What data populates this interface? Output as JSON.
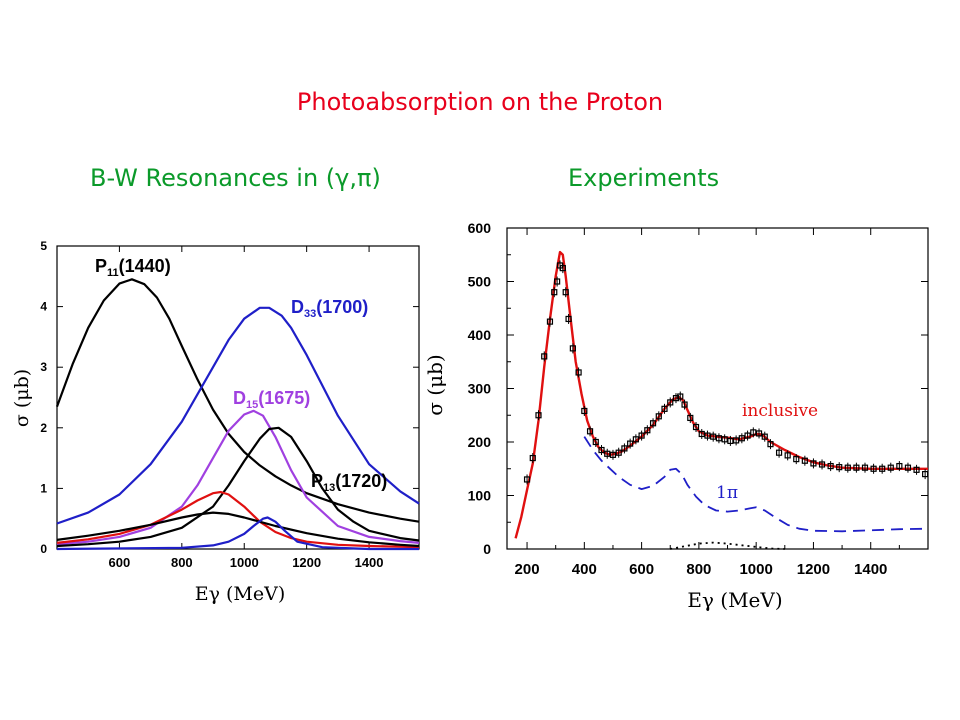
{
  "page": {
    "title": "Photoabsorption on the Proton",
    "subtitle_left": "B-W Resonances in (γ,π)",
    "subtitle_right": "Experiments"
  },
  "chart_data": [
    {
      "type": "line",
      "xlabel": "Eγ (MeV)",
      "ylabel": "σ (μb)",
      "xlim": [
        400,
        1560
      ],
      "ylim": [
        0,
        5
      ],
      "x_ticks": [
        600,
        800,
        1000,
        1200,
        1400
      ],
      "y_ticks": [
        0,
        1,
        2,
        3,
        4,
        5
      ],
      "series": [
        {
          "name": "P11 (1440)",
          "label_main": "P",
          "label_sub": "11",
          "label_tail": "(1440)",
          "color": "#000000",
          "x": [
            400,
            450,
            500,
            550,
            600,
            640,
            680,
            720,
            760,
            800,
            850,
            900,
            950,
            1000,
            1050,
            1100,
            1150,
            1200,
            1300,
            1400,
            1500,
            1560
          ],
          "y": [
            2.35,
            3.05,
            3.65,
            4.1,
            4.38,
            4.45,
            4.37,
            4.15,
            3.8,
            3.35,
            2.8,
            2.3,
            1.9,
            1.6,
            1.38,
            1.2,
            1.05,
            0.92,
            0.74,
            0.6,
            0.5,
            0.45
          ]
        },
        {
          "name": "D33(1700)",
          "label_main": "D",
          "label_sub": "33",
          "label_tail": "(1700)",
          "color": "#1f1fc8",
          "x": [
            400,
            500,
            600,
            700,
            800,
            900,
            950,
            1000,
            1050,
            1080,
            1120,
            1150,
            1200,
            1300,
            1400,
            1500,
            1560
          ],
          "y": [
            0.42,
            0.6,
            0.9,
            1.4,
            2.1,
            3.0,
            3.45,
            3.8,
            3.98,
            3.98,
            3.85,
            3.65,
            3.2,
            2.2,
            1.4,
            0.95,
            0.75
          ]
        },
        {
          "name": "D15 (1675)",
          "label_main": "D",
          "label_sub": "15",
          "label_tail": "(1675)",
          "color": "#a040e0",
          "x": [
            400,
            500,
            600,
            700,
            800,
            850,
            900,
            950,
            1000,
            1030,
            1060,
            1100,
            1150,
            1200,
            1300,
            1400,
            1500,
            1560
          ],
          "y": [
            0.08,
            0.12,
            0.2,
            0.35,
            0.7,
            1.05,
            1.5,
            1.95,
            2.22,
            2.28,
            2.2,
            1.85,
            1.3,
            0.85,
            0.38,
            0.2,
            0.13,
            0.1
          ]
        },
        {
          "name": "P13 (1720)",
          "label_main": "P",
          "label_sub": "13",
          "label_tail": "(1720)",
          "color": "#000000",
          "x": [
            400,
            500,
            600,
            700,
            800,
            900,
            950,
            1000,
            1050,
            1080,
            1110,
            1150,
            1200,
            1250,
            1300,
            1350,
            1400,
            1500,
            1560
          ],
          "y": [
            0.05,
            0.08,
            0.12,
            0.2,
            0.35,
            0.7,
            1.05,
            1.45,
            1.82,
            1.98,
            2.0,
            1.85,
            1.45,
            1.0,
            0.65,
            0.45,
            0.3,
            0.18,
            0.14
          ]
        },
        {
          "name": "red",
          "label_main": "",
          "label_sub": "",
          "label_tail": "",
          "color": "#e01010",
          "x": [
            400,
            500,
            600,
            700,
            800,
            850,
            900,
            925,
            950,
            1000,
            1050,
            1100,
            1150,
            1200,
            1300,
            1400,
            1560
          ],
          "y": [
            0.1,
            0.16,
            0.25,
            0.4,
            0.65,
            0.8,
            0.92,
            0.94,
            0.9,
            0.7,
            0.45,
            0.28,
            0.18,
            0.12,
            0.07,
            0.05,
            0.03
          ]
        },
        {
          "name": "black-broad",
          "label_main": "",
          "label_sub": "",
          "label_tail": "",
          "color": "#000000",
          "x": [
            400,
            500,
            600,
            700,
            800,
            850,
            900,
            950,
            1000,
            1100,
            1200,
            1300,
            1400,
            1500,
            1560
          ],
          "y": [
            0.15,
            0.22,
            0.3,
            0.4,
            0.52,
            0.57,
            0.6,
            0.58,
            0.52,
            0.38,
            0.26,
            0.17,
            0.11,
            0.07,
            0.05
          ]
        },
        {
          "name": "blue-narrow",
          "label_main": "",
          "label_sub": "",
          "label_tail": "",
          "color": "#1f1fc8",
          "x": [
            400,
            800,
            900,
            950,
            1000,
            1030,
            1060,
            1075,
            1100,
            1130,
            1170,
            1250,
            1400,
            1560
          ],
          "y": [
            0.0,
            0.02,
            0.06,
            0.12,
            0.25,
            0.38,
            0.5,
            0.52,
            0.45,
            0.3,
            0.12,
            0.03,
            0.0,
            0.0
          ]
        }
      ]
    },
    {
      "type": "line+scatter",
      "xlabel": "Eγ (MeV)",
      "ylabel": "σ (μb)",
      "xlim": [
        130,
        1600
      ],
      "ylim": [
        0,
        600
      ],
      "x_ticks": [
        200,
        400,
        600,
        800,
        1000,
        1200,
        1400
      ],
      "y_ticks": [
        0,
        100,
        200,
        300,
        400,
        500,
        600
      ],
      "annotations": {
        "inclusive": "inclusive",
        "one_pi": "1π"
      },
      "series": [
        {
          "name": "inclusive",
          "color": "#e01010",
          "style": "solid",
          "x": [
            160,
            180,
            200,
            220,
            240,
            260,
            280,
            300,
            315,
            325,
            335,
            350,
            370,
            390,
            410,
            430,
            450,
            470,
            490,
            510,
            530,
            560,
            600,
            640,
            680,
            710,
            730,
            745,
            760,
            780,
            800,
            830,
            860,
            900,
            940,
            980,
            1000,
            1020,
            1050,
            1100,
            1150,
            1200,
            1250,
            1300,
            1400,
            1500,
            1600
          ],
          "y": [
            20,
            60,
            110,
            160,
            240,
            340,
            430,
            510,
            555,
            550,
            510,
            440,
            350,
            290,
            240,
            210,
            190,
            180,
            176,
            178,
            182,
            193,
            210,
            232,
            262,
            280,
            284,
            278,
            260,
            236,
            220,
            212,
            210,
            208,
            205,
            210,
            215,
            214,
            200,
            185,
            172,
            162,
            156,
            152,
            150,
            150,
            150
          ]
        },
        {
          "name": "1π",
          "color": "#1f1fc8",
          "style": "dashed",
          "x": [
            400,
            430,
            460,
            490,
            520,
            560,
            600,
            640,
            680,
            700,
            720,
            740,
            760,
            790,
            820,
            860,
            900,
            940,
            980,
            1000,
            1030,
            1070,
            1110,
            1150,
            1200,
            1300,
            1400,
            1500,
            1600
          ],
          "y": [
            210,
            185,
            165,
            150,
            135,
            120,
            112,
            118,
            135,
            148,
            150,
            140,
            120,
            98,
            82,
            72,
            70,
            72,
            76,
            78,
            72,
            58,
            45,
            38,
            34,
            33,
            35,
            37,
            38
          ]
        },
        {
          "name": "small",
          "color": "#000000",
          "style": "dotted",
          "x": [
            700,
            750,
            800,
            850,
            900,
            950,
            1000,
            1050,
            1100
          ],
          "y": [
            0,
            5,
            10,
            12,
            10,
            7,
            4,
            1,
            0
          ]
        },
        {
          "name": "data",
          "color": "#000000",
          "style": "points",
          "x": [
            200,
            220,
            240,
            260,
            280,
            295,
            305,
            315,
            325,
            335,
            345,
            360,
            380,
            400,
            420,
            440,
            460,
            480,
            500,
            520,
            540,
            560,
            580,
            600,
            620,
            640,
            660,
            680,
            700,
            720,
            735,
            750,
            770,
            790,
            810,
            830,
            850,
            870,
            890,
            910,
            930,
            950,
            970,
            990,
            1010,
            1030,
            1050,
            1080,
            1110,
            1140,
            1170,
            1200,
            1230,
            1260,
            1290,
            1320,
            1350,
            1380,
            1410,
            1440,
            1470,
            1500,
            1530,
            1560,
            1590
          ],
          "y": [
            130,
            170,
            250,
            360,
            425,
            480,
            500,
            530,
            525,
            480,
            430,
            375,
            330,
            258,
            220,
            200,
            185,
            178,
            176,
            180,
            188,
            197,
            205,
            212,
            222,
            235,
            248,
            262,
            274,
            282,
            285,
            270,
            245,
            228,
            215,
            212,
            210,
            207,
            205,
            202,
            203,
            207,
            212,
            218,
            216,
            210,
            196,
            180,
            175,
            168,
            165,
            160,
            158,
            155,
            153,
            152,
            152,
            152,
            150,
            150,
            152,
            155,
            152,
            148,
            140
          ]
        }
      ]
    }
  ]
}
